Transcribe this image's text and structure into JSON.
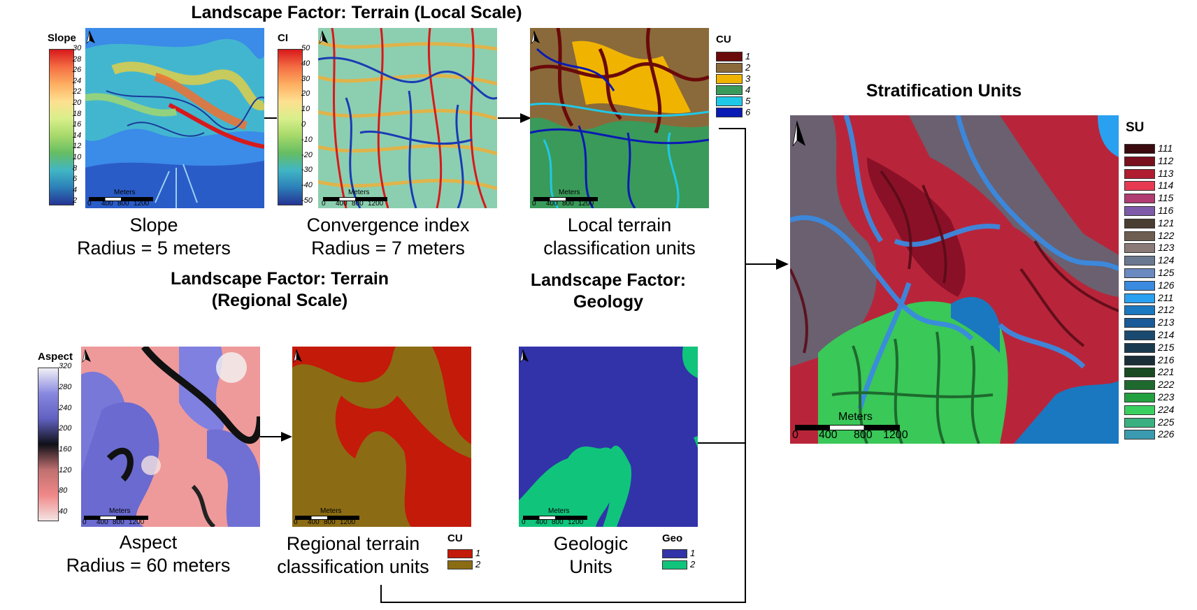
{
  "titles": {
    "local_scale": "Landscape Factor: Terrain (Local Scale)",
    "regional_scale_l1": "Landscape Factor: Terrain",
    "regional_scale_l2": "(Regional Scale)",
    "geology_l1": "Landscape Factor:",
    "geology_l2": "Geology",
    "stratification": "Stratification Units"
  },
  "panels": {
    "slope": {
      "caption_l1": "Slope",
      "caption_l2": "Radius = 5 meters",
      "legend_title": "Slope",
      "ticks": [
        "30",
        "28",
        "26",
        "24",
        "22",
        "20",
        "18",
        "16",
        "14",
        "12",
        "10",
        "8",
        "6",
        "4",
        "2"
      ]
    },
    "ci": {
      "caption_l1": "Convergence index",
      "caption_l2": "Radius = 7 meters",
      "legend_title": "CI",
      "ticks": [
        "50",
        "40",
        "30",
        "20",
        "10",
        "0",
        "-10",
        "-20",
        "-30",
        "-40",
        "-50"
      ]
    },
    "local_cu": {
      "caption_l1": "Local terrain",
      "caption_l2": "classification units",
      "legend_title": "CU",
      "classes": [
        {
          "label": "1",
          "color": "#6b0a0a"
        },
        {
          "label": "2",
          "color": "#8a6a3a"
        },
        {
          "label": "3",
          "color": "#f0b400"
        },
        {
          "label": "4",
          "color": "#3a9a5a"
        },
        {
          "label": "5",
          "color": "#20c8e8"
        },
        {
          "label": "6",
          "color": "#0a1ab4"
        }
      ]
    },
    "aspect": {
      "caption_l1": "Aspect",
      "caption_l2": "Radius = 60 meters",
      "legend_title": "Aspect",
      "ticks": [
        "320",
        "280",
        "240",
        "200",
        "160",
        "120",
        "80",
        "40"
      ]
    },
    "regional_cu": {
      "caption_l1": "Regional terrain",
      "caption_l2": "classification units",
      "legend_title": "CU",
      "classes": [
        {
          "label": "1",
          "color": "#c41a0a"
        },
        {
          "label": "2",
          "color": "#8b6c14"
        }
      ]
    },
    "geology": {
      "caption_l1": "Geologic",
      "caption_l2": "Units",
      "legend_title": "Geo",
      "classes": [
        {
          "label": "1",
          "color": "#3233a8"
        },
        {
          "label": "2",
          "color": "#10c47c"
        }
      ]
    },
    "su": {
      "legend_title": "SU",
      "classes": [
        {
          "label": "111",
          "color": "#3a0a0e"
        },
        {
          "label": "112",
          "color": "#7a0f1e"
        },
        {
          "label": "113",
          "color": "#b01c30"
        },
        {
          "label": "114",
          "color": "#e63a52"
        },
        {
          "label": "115",
          "color": "#b03c72"
        },
        {
          "label": "116",
          "color": "#7e5aa8"
        },
        {
          "label": "121",
          "color": "#4a3e32"
        },
        {
          "label": "122",
          "color": "#6e5e52"
        },
        {
          "label": "123",
          "color": "#8a7a78"
        },
        {
          "label": "124",
          "color": "#6a7890"
        },
        {
          "label": "125",
          "color": "#6a8ac0"
        },
        {
          "label": "126",
          "color": "#3a8ae0"
        },
        {
          "label": "211",
          "color": "#2aa0f0"
        },
        {
          "label": "212",
          "color": "#1a78c0"
        },
        {
          "label": "213",
          "color": "#1a5a98"
        },
        {
          "label": "214",
          "color": "#1a4a70"
        },
        {
          "label": "215",
          "color": "#1a3a50"
        },
        {
          "label": "216",
          "color": "#1a2e38"
        },
        {
          "label": "221",
          "color": "#1a4a22"
        },
        {
          "label": "222",
          "color": "#1e6a2e"
        },
        {
          "label": "223",
          "color": "#22a040"
        },
        {
          "label": "224",
          "color": "#3ad060"
        },
        {
          "label": "225",
          "color": "#3ab080"
        },
        {
          "label": "226",
          "color": "#3a9ab0"
        }
      ]
    }
  },
  "scalebar": {
    "unit": "Meters",
    "labels": [
      "0",
      "400",
      "800",
      "1200"
    ]
  }
}
